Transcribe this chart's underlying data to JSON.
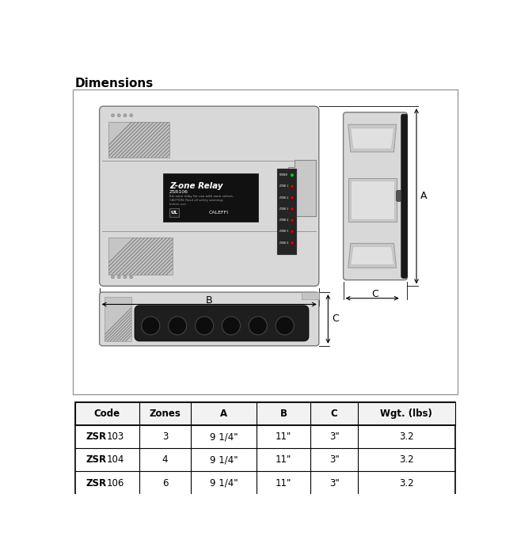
{
  "title": "Dimensions",
  "bg_color": "#ffffff",
  "device_fill": "#d8d8d8",
  "device_dark": "#b8b8b8",
  "black_fill": "#1a1a1a",
  "table_headers": [
    "Code",
    "Zones",
    "A",
    "B",
    "C",
    "Wgt. (lbs)"
  ],
  "table_rows": [
    [
      "ZSR103",
      "3",
      "9 1/4\"",
      "11\"",
      "3\"",
      "3.2"
    ],
    [
      "ZSR104",
      "4",
      "9 1/4\"",
      "11\"",
      "3\"",
      "3.2"
    ],
    [
      "ZSR106",
      "6",
      "9 1/4\"",
      "11\"",
      "3\"",
      "3.2"
    ]
  ],
  "label_A": "A",
  "label_B": "B",
  "label_C": "C"
}
